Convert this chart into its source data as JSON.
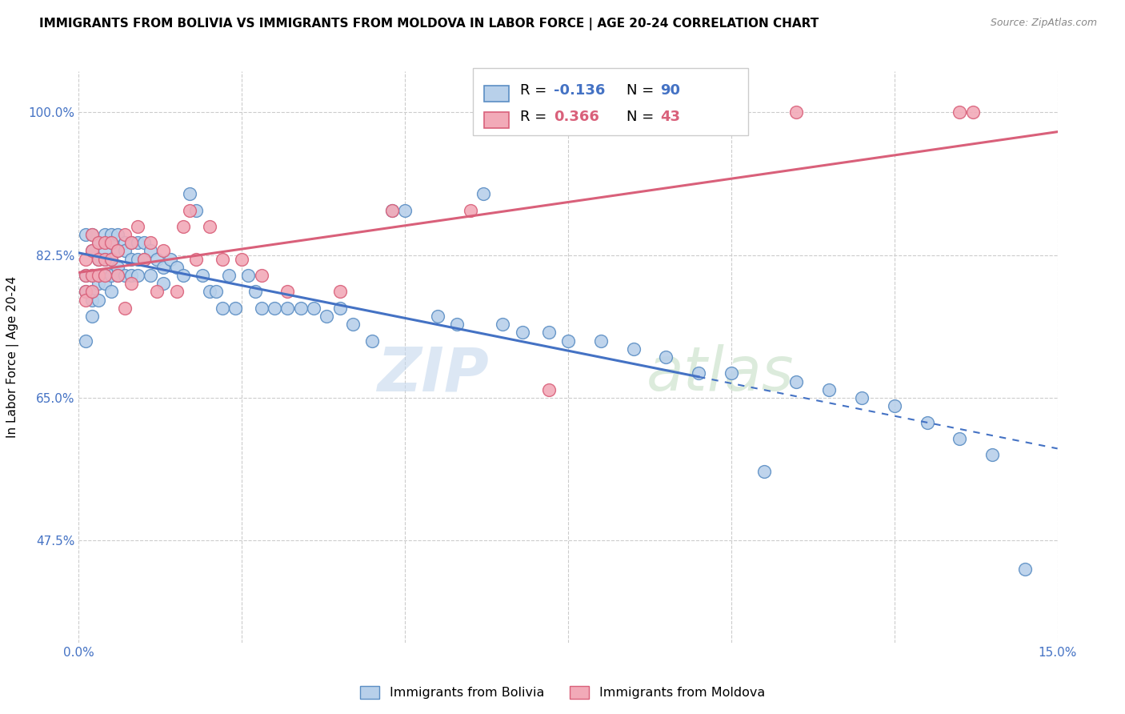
{
  "title": "IMMIGRANTS FROM BOLIVIA VS IMMIGRANTS FROM MOLDOVA IN LABOR FORCE | AGE 20-24 CORRELATION CHART",
  "source": "Source: ZipAtlas.com",
  "ylabel": "In Labor Force | Age 20-24",
  "xlim": [
    0.0,
    0.15
  ],
  "ylim": [
    0.35,
    1.05
  ],
  "x_ticks": [
    0.0,
    0.025,
    0.05,
    0.075,
    0.1,
    0.125,
    0.15
  ],
  "y_ticks": [
    0.475,
    0.65,
    0.825,
    1.0
  ],
  "y_tick_labels": [
    "47.5%",
    "65.0%",
    "82.5%",
    "100.0%"
  ],
  "legend_R_bolivia": "-0.136",
  "legend_N_bolivia": "90",
  "legend_R_moldova": "0.366",
  "legend_N_moldova": "43",
  "bolivia_color": "#b8d0ea",
  "moldova_color": "#f2aab8",
  "bolivia_edge_color": "#5b8ec4",
  "moldova_edge_color": "#d9607a",
  "bolivia_line_color": "#4472c4",
  "moldova_line_color": "#d9607a",
  "bolivia_line_solid_end": 0.095,
  "bolivia_x": [
    0.001,
    0.001,
    0.001,
    0.001,
    0.002,
    0.002,
    0.002,
    0.002,
    0.002,
    0.002,
    0.003,
    0.003,
    0.003,
    0.003,
    0.003,
    0.004,
    0.004,
    0.004,
    0.004,
    0.004,
    0.005,
    0.005,
    0.005,
    0.005,
    0.005,
    0.006,
    0.006,
    0.006,
    0.006,
    0.007,
    0.007,
    0.007,
    0.008,
    0.008,
    0.008,
    0.009,
    0.009,
    0.009,
    0.01,
    0.01,
    0.011,
    0.011,
    0.012,
    0.013,
    0.013,
    0.014,
    0.015,
    0.016,
    0.017,
    0.018,
    0.019,
    0.02,
    0.021,
    0.022,
    0.023,
    0.024,
    0.026,
    0.027,
    0.028,
    0.03,
    0.032,
    0.034,
    0.036,
    0.038,
    0.04,
    0.042,
    0.045,
    0.048,
    0.05,
    0.055,
    0.058,
    0.062,
    0.065,
    0.068,
    0.072,
    0.075,
    0.08,
    0.085,
    0.09,
    0.095,
    0.1,
    0.105,
    0.11,
    0.115,
    0.12,
    0.125,
    0.13,
    0.135,
    0.14,
    0.145
  ],
  "bolivia_y": [
    0.8,
    0.85,
    0.78,
    0.72,
    0.85,
    0.83,
    0.8,
    0.78,
    0.77,
    0.75,
    0.84,
    0.82,
    0.8,
    0.79,
    0.77,
    0.85,
    0.83,
    0.82,
    0.8,
    0.79,
    0.85,
    0.84,
    0.82,
    0.8,
    0.78,
    0.85,
    0.83,
    0.81,
    0.8,
    0.84,
    0.83,
    0.8,
    0.84,
    0.82,
    0.8,
    0.84,
    0.82,
    0.8,
    0.84,
    0.82,
    0.83,
    0.8,
    0.82,
    0.81,
    0.79,
    0.82,
    0.81,
    0.8,
    0.9,
    0.88,
    0.8,
    0.78,
    0.78,
    0.76,
    0.8,
    0.76,
    0.8,
    0.78,
    0.76,
    0.76,
    0.76,
    0.76,
    0.76,
    0.75,
    0.76,
    0.74,
    0.72,
    0.88,
    0.88,
    0.75,
    0.74,
    0.9,
    0.74,
    0.73,
    0.73,
    0.72,
    0.72,
    0.71,
    0.7,
    0.68,
    0.68,
    0.56,
    0.67,
    0.66,
    0.65,
    0.64,
    0.62,
    0.6,
    0.58,
    0.44
  ],
  "moldova_x": [
    0.001,
    0.001,
    0.001,
    0.001,
    0.002,
    0.002,
    0.002,
    0.002,
    0.003,
    0.003,
    0.003,
    0.004,
    0.004,
    0.004,
    0.005,
    0.005,
    0.006,
    0.006,
    0.007,
    0.007,
    0.008,
    0.008,
    0.009,
    0.01,
    0.011,
    0.012,
    0.013,
    0.015,
    0.016,
    0.017,
    0.018,
    0.02,
    0.022,
    0.025,
    0.028,
    0.032,
    0.04,
    0.048,
    0.06,
    0.072,
    0.11,
    0.135,
    0.137
  ],
  "moldova_y": [
    0.82,
    0.8,
    0.78,
    0.77,
    0.85,
    0.83,
    0.8,
    0.78,
    0.84,
    0.82,
    0.8,
    0.84,
    0.82,
    0.8,
    0.84,
    0.82,
    0.83,
    0.8,
    0.85,
    0.76,
    0.84,
    0.79,
    0.86,
    0.82,
    0.84,
    0.78,
    0.83,
    0.78,
    0.86,
    0.88,
    0.82,
    0.86,
    0.82,
    0.82,
    0.8,
    0.78,
    0.78,
    0.88,
    0.88,
    0.66,
    1.0,
    1.0,
    1.0
  ]
}
